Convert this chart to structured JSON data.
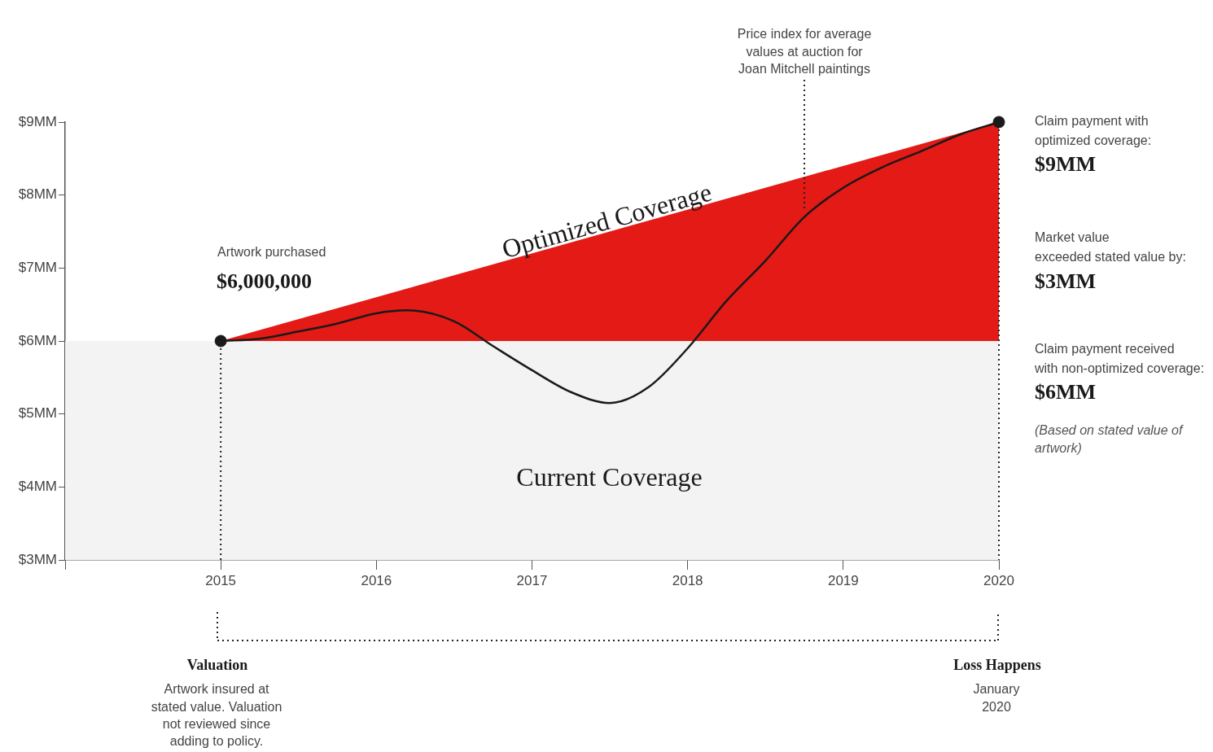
{
  "chart_data": {
    "type": "area",
    "xlim": [
      2014,
      2020
    ],
    "xticks": [
      {
        "value": 2014,
        "label": null
      },
      2015,
      2016,
      2017,
      2018,
      2019,
      2020
    ],
    "ylim": [
      3,
      9
    ],
    "yticks": [
      {
        "value": 3,
        "label": "$3MM"
      },
      {
        "value": 4,
        "label": "$4MM"
      },
      {
        "value": 5,
        "label": "$5MM"
      },
      {
        "value": 6,
        "label": "$6MM"
      },
      {
        "value": 7,
        "label": "$7MM"
      },
      {
        "value": 8,
        "label": "$8MM"
      },
      {
        "value": 9,
        "label": "$9MM"
      }
    ],
    "grid": false,
    "legend": false,
    "series": [
      {
        "name": "Current Coverage",
        "color": "#f3f3f3",
        "x": [
          2014,
          2020
        ],
        "values": [
          6,
          6
        ]
      },
      {
        "name": "Optimized Coverage",
        "color": "#e31a15",
        "x": [
          2015,
          2020
        ],
        "values": [
          6,
          9
        ]
      },
      {
        "type": "line",
        "color": "#1a1a1a",
        "x": [
          2015,
          2015.25,
          2015.5,
          2015.75,
          2016,
          2016.2,
          2016.5,
          2016.75,
          2017,
          2017.25,
          2017.5,
          2017.75,
          2018,
          2018.25,
          2018.5,
          2018.75,
          2019,
          2019.25,
          2019.5,
          2019.75,
          2020
        ],
        "values": [
          6,
          6.03,
          6.13,
          6.24,
          6.38,
          6.42,
          6.27,
          5.93,
          5.6,
          5.3,
          5.15,
          5.37,
          5.9,
          6.55,
          7.1,
          7.7,
          8.1,
          8.38,
          8.6,
          8.83,
          9
        ]
      },
      {
        "type": "scatter",
        "color": "#1a1a1a",
        "marker": "circle",
        "x": [
          2015,
          2020
        ],
        "values": [
          6,
          9
        ]
      }
    ],
    "ref_lines": [
      {
        "axis": "x",
        "value": 2018.75,
        "color": "#222222",
        "line_style": "dotted",
        "label": "Price index for average\nvalues at auction for\nJoan Mitchell paintings"
      },
      {
        "axis": "x",
        "value": 2015,
        "color": "#222222",
        "line_style": "dotted"
      },
      {
        "axis": "x",
        "value": 2020,
        "color": "#222222",
        "line_style": "dotted"
      }
    ],
    "annotations": [
      "Artwork purchased",
      "$6,000,000",
      "Claim payment with\noptimized coverage:",
      "$9MM",
      "Market value\nexceeded stated value by:",
      "$3MM",
      "Claim payment received\nwith non-optimized coverage:",
      "$6MM",
      "(Based on stated value of\nartwork)",
      "Valuation",
      "Artwork insured at\nstated value. Valuation\nnot reviewed since\nadding to policy.",
      "Loss Happens",
      "January\n2020"
    ]
  }
}
